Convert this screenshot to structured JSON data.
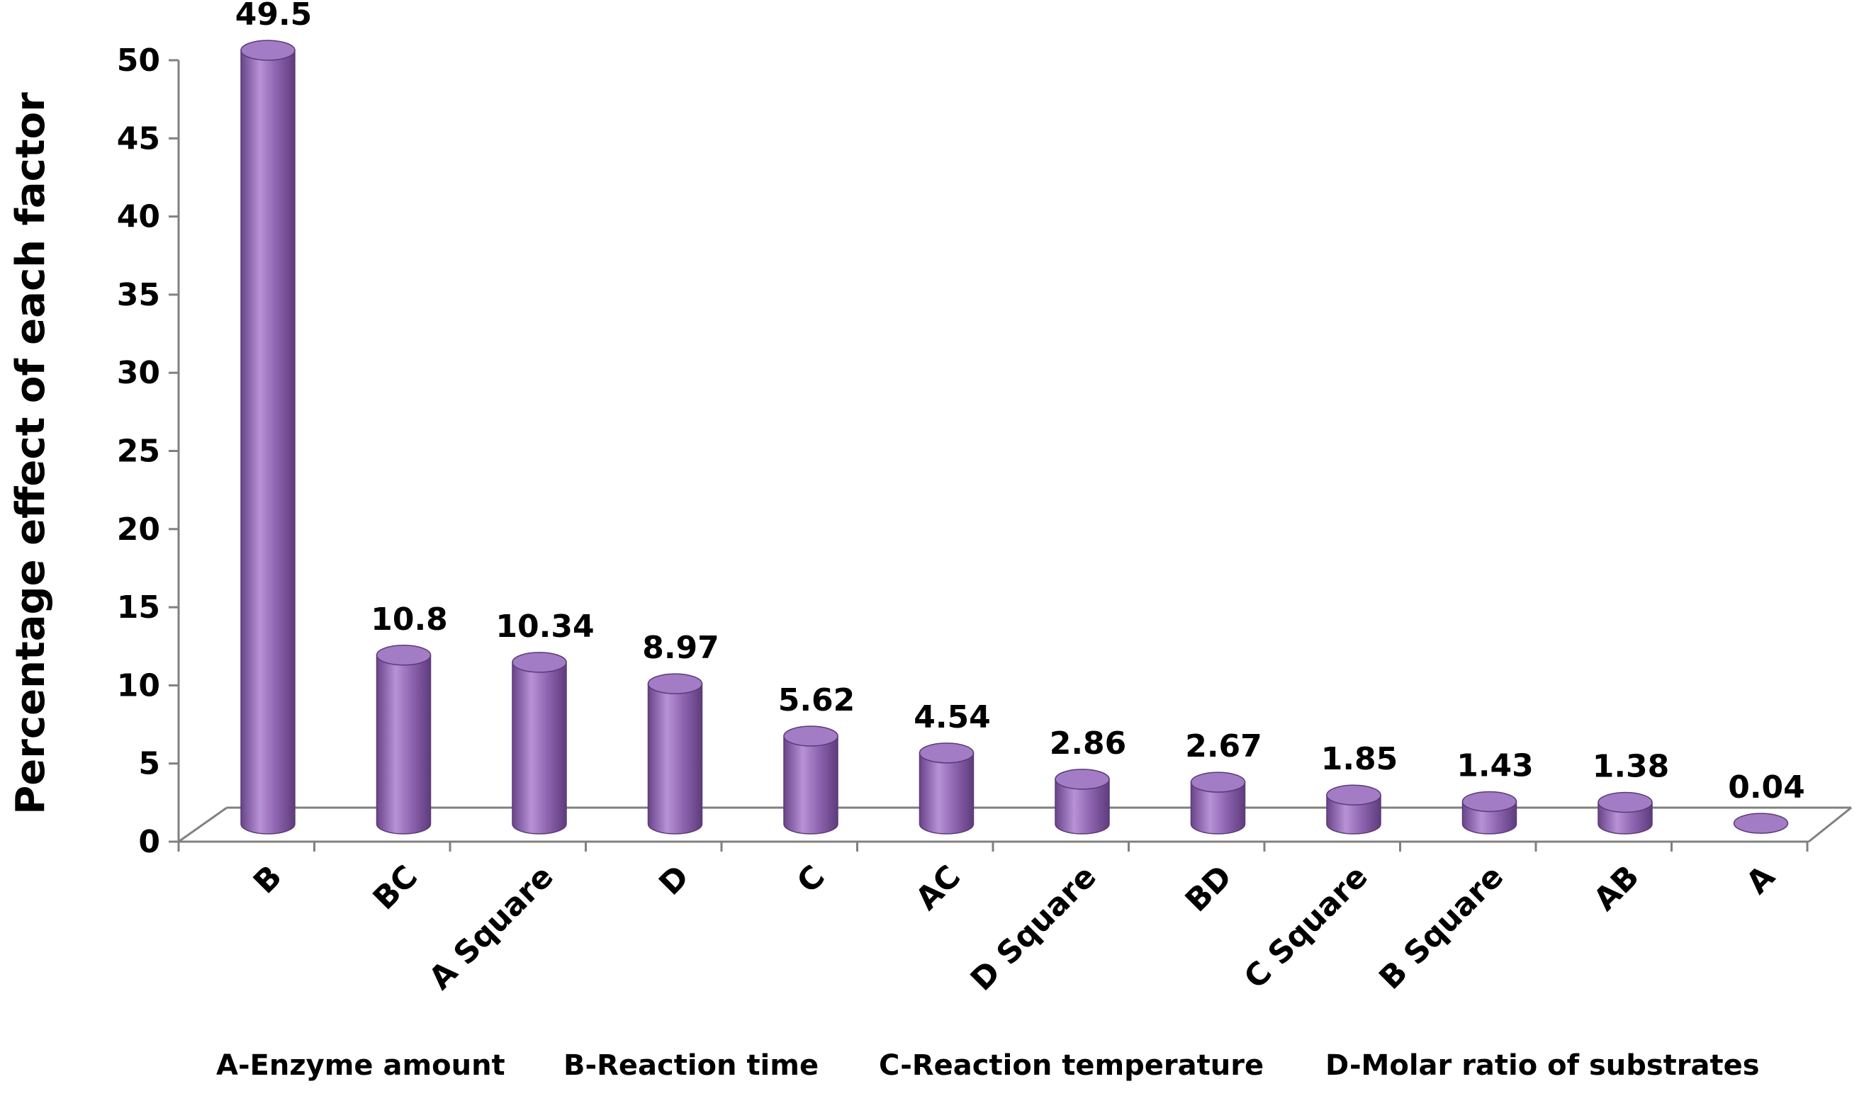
{
  "chart_data": {
    "type": "bar",
    "style": "3d-cylinder",
    "title": "",
    "xlabel": "",
    "ylabel": "Percentage effect of each factor",
    "ylim": [
      0,
      50
    ],
    "yticks": [
      0,
      5,
      10,
      15,
      20,
      25,
      30,
      35,
      40,
      45,
      50
    ],
    "categories": [
      "B",
      "BC",
      "A Square",
      "D",
      "C",
      "AC",
      "D Square",
      "BD",
      "C Square",
      "B Square",
      "AB",
      "A"
    ],
    "values": [
      49.5,
      10.8,
      10.34,
      8.97,
      5.62,
      4.54,
      2.86,
      2.67,
      1.85,
      1.43,
      1.38,
      0.04
    ],
    "data_labels": [
      "49.5",
      "10.8",
      "10.34",
      "8.97",
      "5.62",
      "4.54",
      "2.86",
      "2.67",
      "1.85",
      "1.43",
      "1.38",
      "0.04"
    ],
    "legend_note": [
      "A-Enzyme amount",
      "B-Reaction time",
      "C-Reaction temperature",
      "D-Molar ratio of substrates"
    ],
    "colors": {
      "bar_main": "#8e64b0",
      "bar_light": "#b892d6",
      "bar_dark": "#6a4488",
      "bar_top": "#a27cc4",
      "bar_outline": "#5b3a78",
      "axis": "#808080"
    }
  }
}
